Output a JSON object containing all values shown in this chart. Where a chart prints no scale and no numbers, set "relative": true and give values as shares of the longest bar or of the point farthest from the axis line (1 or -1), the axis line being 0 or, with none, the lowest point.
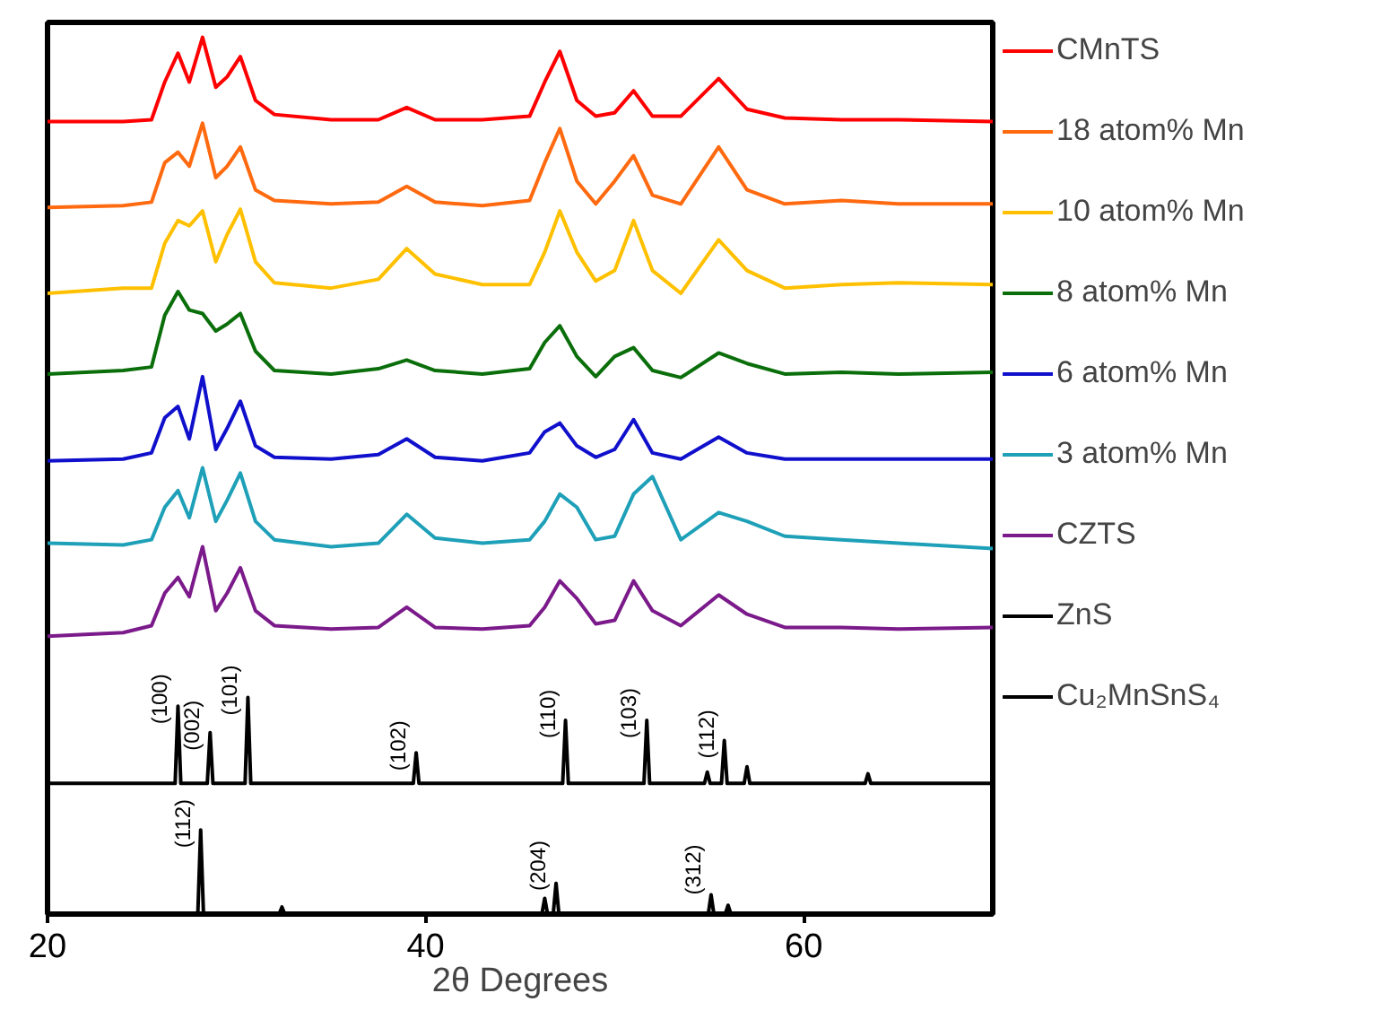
{
  "chart_data": {
    "type": "line",
    "relative": true,
    "xlabel": "2θ Degrees",
    "xlim": [
      20,
      70
    ],
    "xticks": [
      20,
      40,
      60
    ],
    "tick_labels": "x",
    "grid": false,
    "legend": "right",
    "x": [
      20,
      24,
      25.5,
      26.2,
      26.9,
      27.5,
      28.2,
      28.9,
      29.5,
      30.2,
      31.0,
      32,
      35,
      37.5,
      39.0,
      40.5,
      43,
      45.5,
      46.3,
      47.1,
      48.0,
      49.0,
      50.0,
      51.0,
      52.0,
      53.5,
      55.5,
      57.0,
      59,
      62,
      65,
      70
    ],
    "series": [
      {
        "name": "CMnTS",
        "color": "#ff0000",
        "values": [
          0.904,
          0.904,
          0.906,
          0.949,
          0.982,
          0.949,
          1.0,
          0.943,
          0.955,
          0.978,
          0.928,
          0.912,
          0.906,
          0.906,
          0.92,
          0.906,
          0.906,
          0.91,
          0.949,
          0.984,
          0.928,
          0.91,
          0.914,
          0.939,
          0.91,
          0.91,
          0.953,
          0.918,
          0.908,
          0.906,
          0.906,
          0.904
        ]
      },
      {
        "name": "18 atom% Mn",
        "color": "#ff6a10",
        "values": [
          0.806,
          0.808,
          0.812,
          0.857,
          0.869,
          0.853,
          0.902,
          0.84,
          0.853,
          0.875,
          0.826,
          0.814,
          0.81,
          0.812,
          0.83,
          0.812,
          0.808,
          0.814,
          0.857,
          0.896,
          0.836,
          0.81,
          0.836,
          0.865,
          0.82,
          0.81,
          0.875,
          0.826,
          0.81,
          0.814,
          0.81,
          0.81
        ]
      },
      {
        "name": "10 atom% Mn",
        "color": "#ffc000",
        "values": [
          0.708,
          0.714,
          0.714,
          0.765,
          0.791,
          0.785,
          0.802,
          0.744,
          0.775,
          0.804,
          0.744,
          0.72,
          0.714,
          0.724,
          0.759,
          0.73,
          0.718,
          0.718,
          0.755,
          0.802,
          0.755,
          0.722,
          0.734,
          0.791,
          0.734,
          0.708,
          0.769,
          0.734,
          0.714,
          0.718,
          0.72,
          0.718
        ]
      },
      {
        "name": "8 atom% Mn",
        "color": "#0a6e0a",
        "values": [
          0.616,
          0.62,
          0.624,
          0.683,
          0.71,
          0.689,
          0.685,
          0.665,
          0.673,
          0.685,
          0.642,
          0.62,
          0.616,
          0.622,
          0.632,
          0.62,
          0.616,
          0.622,
          0.652,
          0.671,
          0.636,
          0.613,
          0.636,
          0.646,
          0.62,
          0.612,
          0.64,
          0.628,
          0.616,
          0.618,
          0.616,
          0.618
        ]
      },
      {
        "name": "6 atom% Mn",
        "color": "#1010cc",
        "values": [
          0.517,
          0.519,
          0.526,
          0.566,
          0.579,
          0.542,
          0.613,
          0.53,
          0.554,
          0.585,
          0.534,
          0.521,
          0.519,
          0.524,
          0.542,
          0.521,
          0.517,
          0.526,
          0.55,
          0.56,
          0.534,
          0.521,
          0.53,
          0.564,
          0.526,
          0.519,
          0.544,
          0.526,
          0.519,
          0.519,
          0.519,
          0.519
        ]
      },
      {
        "name": "3 atom% Mn",
        "color": "#1ea0b8",
        "values": [
          0.423,
          0.421,
          0.427,
          0.464,
          0.483,
          0.452,
          0.509,
          0.448,
          0.472,
          0.503,
          0.448,
          0.427,
          0.419,
          0.423,
          0.456,
          0.429,
          0.423,
          0.427,
          0.448,
          0.479,
          0.464,
          0.427,
          0.431,
          0.479,
          0.499,
          0.427,
          0.458,
          0.448,
          0.431,
          0.427,
          0.423,
          0.417
        ]
      },
      {
        "name": "CZTS",
        "color": "#7b1a8a",
        "values": [
          0.317,
          0.321,
          0.329,
          0.366,
          0.384,
          0.362,
          0.419,
          0.346,
          0.366,
          0.395,
          0.346,
          0.329,
          0.325,
          0.327,
          0.35,
          0.327,
          0.325,
          0.329,
          0.35,
          0.38,
          0.36,
          0.331,
          0.335,
          0.38,
          0.346,
          0.329,
          0.364,
          0.342,
          0.327,
          0.327,
          0.325,
          0.327
        ]
      },
      {
        "name": "ZnS",
        "color": "#000000",
        "x": [
          20,
          26.75,
          26.9,
          27.05,
          28.45,
          28.6,
          28.75,
          30.45,
          30.6,
          30.75,
          39.35,
          39.5,
          39.65,
          47.25,
          47.4,
          47.55,
          51.55,
          51.7,
          51.85,
          54.75,
          54.9,
          55.05,
          55.65,
          55.8,
          55.95,
          56.85,
          57.0,
          57.15,
          63.25,
          63.4,
          63.55,
          70
        ],
        "values": [
          0.149,
          0.149,
          0.237,
          0.149,
          0.149,
          0.207,
          0.149,
          0.149,
          0.247,
          0.149,
          0.149,
          0.184,
          0.149,
          0.149,
          0.221,
          0.149,
          0.149,
          0.221,
          0.149,
          0.149,
          0.162,
          0.149,
          0.149,
          0.198,
          0.149,
          0.149,
          0.168,
          0.149,
          0.149,
          0.16,
          0.149,
          0.149
        ]
      },
      {
        "name": "Cu₂MnSnS₄",
        "color": "#000000",
        "x": [
          20,
          27.95,
          28.1,
          28.25,
          32.25,
          32.4,
          32.55,
          46.15,
          46.3,
          46.45,
          46.75,
          46.9,
          47.05,
          54.95,
          55.1,
          55.25,
          55.85,
          56.0,
          56.15,
          70
        ],
        "values": [
          0,
          0,
          0.096,
          0,
          0,
          0.008,
          0,
          0,
          0.018,
          0,
          0,
          0.035,
          0,
          0,
          0.022,
          0,
          0,
          0.01,
          0,
          0
        ]
      }
    ],
    "annotations": [
      {
        "text": "(100)",
        "x": 26.9,
        "y": 0.237
      },
      {
        "text": "(002)",
        "x": 28.6,
        "y": 0.207
      },
      {
        "text": "(101)",
        "x": 30.6,
        "y": 0.247
      },
      {
        "text": "(102)",
        "x": 39.5,
        "y": 0.184
      },
      {
        "text": "(110)",
        "x": 47.4,
        "y": 0.221
      },
      {
        "text": "(103)",
        "x": 51.7,
        "y": 0.221
      },
      {
        "text": "(112)",
        "x": 55.8,
        "y": 0.198
      },
      {
        "text": "(112)",
        "x": 28.1,
        "y": 0.096
      },
      {
        "text": "(204)",
        "x": 46.9,
        "y": 0.035
      },
      {
        "text": "(312)",
        "x": 55.1,
        "y": 0.022
      }
    ]
  }
}
